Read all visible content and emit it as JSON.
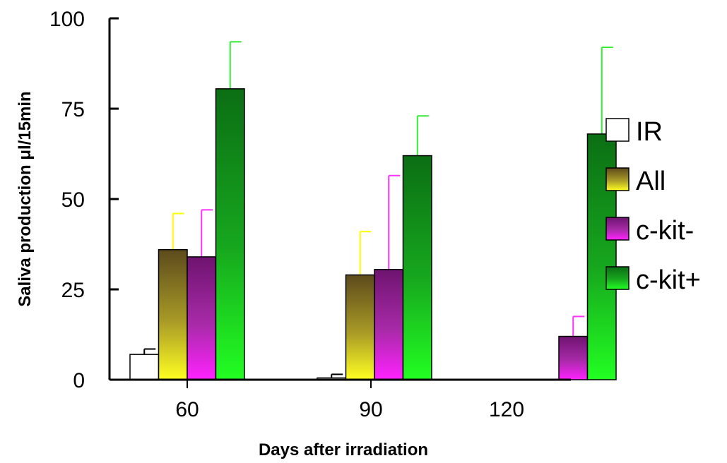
{
  "chart_data": {
    "type": "bar",
    "categories": [
      "60",
      "90",
      "120"
    ],
    "series": [
      {
        "name": "IR",
        "values": [
          7,
          0.5,
          null
        ],
        "errors": [
          1.5,
          1,
          null
        ],
        "color": "#ffffff",
        "error_color": "#000000"
      },
      {
        "name": "All",
        "values": [
          36,
          29,
          null
        ],
        "errors": [
          10,
          12,
          null
        ],
        "color": "#e8e020",
        "error_color": "#ffff00"
      },
      {
        "name": "c-kit-",
        "values": [
          34,
          30.5,
          12
        ],
        "errors": [
          13,
          26,
          5.5
        ],
        "color": "#ee22ee",
        "error_color": "#ff33ff"
      },
      {
        "name": "c-kit+",
        "values": [
          80.5,
          62,
          68
        ],
        "errors": [
          13,
          11,
          24
        ],
        "color": "#22cc22",
        "error_color": "#33ee33"
      }
    ],
    "xlabel": "Days after irradiation",
    "ylabel": "Saliva production μl/15min",
    "ylim": [
      0,
      100
    ],
    "yticks": [
      "0",
      "25",
      "50",
      "75",
      "100"
    ],
    "grid": false,
    "legend_position": "right"
  }
}
